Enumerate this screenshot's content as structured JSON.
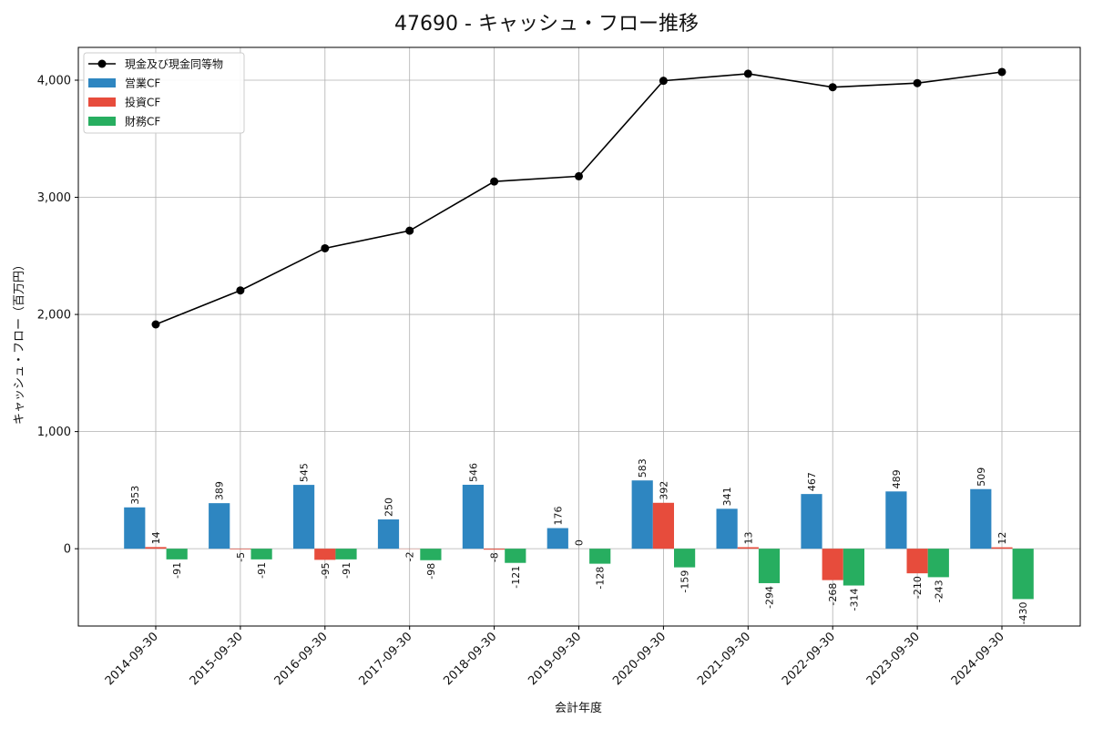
{
  "chart_data": {
    "type": "bar",
    "title": "47690 - キャッシュ・フロー推移",
    "xlabel": "会計年度",
    "ylabel": "キャッシュ・フロー（百万円）",
    "ylim": [
      -660,
      4280
    ],
    "yticks": [
      0,
      1000,
      2000,
      3000,
      4000
    ],
    "ytick_labels": [
      "0",
      "1,000",
      "2,000",
      "3,000",
      "4,000"
    ],
    "grid": true,
    "legend_position": "top-left",
    "categories": [
      "2014-09-30",
      "2015-09-30",
      "2016-09-30",
      "2017-09-30",
      "2018-09-30",
      "2019-09-30",
      "2020-09-30",
      "2021-09-30",
      "2022-09-30",
      "2023-09-30",
      "2024-09-30"
    ],
    "line": {
      "name": "現金及び現金同等物",
      "color": "#000000",
      "values": [
        1915,
        2205,
        2565,
        2715,
        3135,
        3180,
        3995,
        4055,
        3940,
        3975,
        4070
      ]
    },
    "series": [
      {
        "name": "営業CF",
        "color": "#2e86c1",
        "values": [
          353,
          389,
          545,
          250,
          546,
          176,
          583,
          341,
          467,
          489,
          509
        ]
      },
      {
        "name": "投資CF",
        "color": "#e74c3c",
        "values": [
          14,
          -5,
          -95,
          -2,
          -8,
          0,
          392,
          13,
          -268,
          -210,
          12
        ]
      },
      {
        "name": "財務CF",
        "color": "#27ae60",
        "values": [
          -91,
          -91,
          -91,
          -98,
          -121,
          -128,
          -159,
          -294,
          -314,
          -243,
          -430
        ]
      }
    ]
  }
}
